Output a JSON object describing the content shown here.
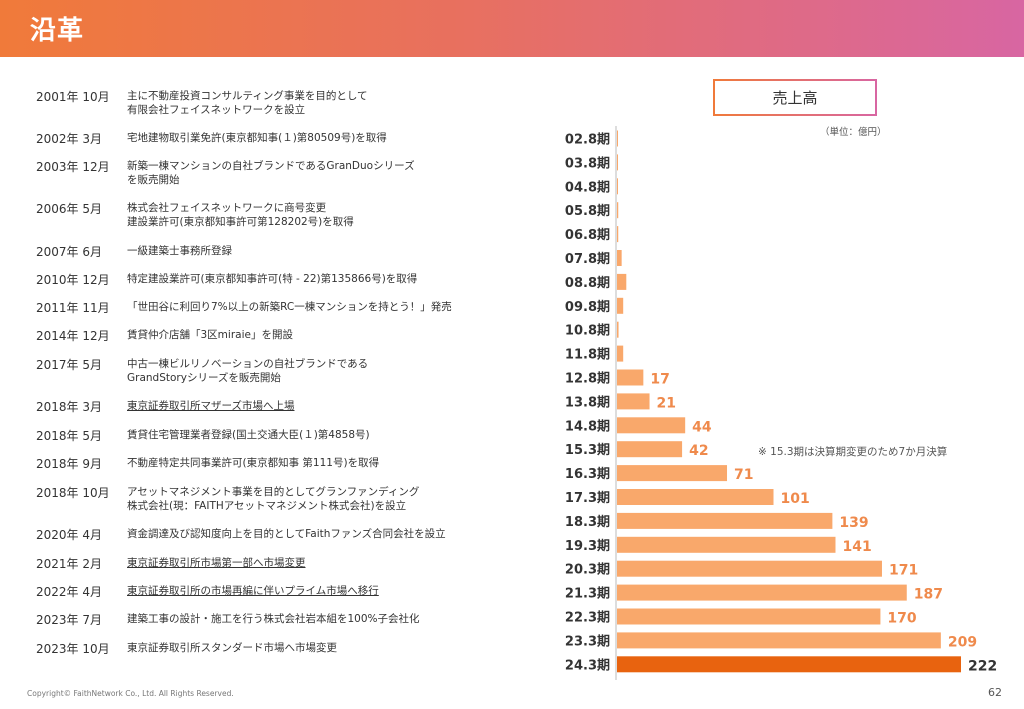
{
  "header": {
    "title": "沿革"
  },
  "timeline": [
    {
      "date": "2001年 10月",
      "lines": [
        "主に不動産投資コンサルティング事業を目的として",
        "有限会社フェイスネットワークを設立"
      ],
      "underline": false
    },
    {
      "date": "2002年  3月",
      "lines": [
        "宅地建物取引業免許(東京都知事(１)第80509号)を取得"
      ],
      "underline": false
    },
    {
      "date": "2003年 12月",
      "lines": [
        "新築一棟マンションの自社ブランドであるGranDuoシリーズ",
        "を販売開始"
      ],
      "underline": false
    },
    {
      "date": "2006年  5月",
      "lines": [
        "株式会社フェイスネットワークに商号変更",
        "建設業許可(東京都知事許可第128202号)を取得"
      ],
      "underline": false
    },
    {
      "date": "2007年  6月",
      "lines": [
        "一級建築士事務所登録"
      ],
      "underline": false
    },
    {
      "date": "2010年 12月",
      "lines": [
        "特定建設業許可(東京都知事許可(特 - 22)第135866号)を取得"
      ],
      "underline": false
    },
    {
      "date": "2011年 11月",
      "lines": [
        "「世田谷に利回り7%以上の新築RC一棟マンションを持とう！」発売"
      ],
      "underline": false
    },
    {
      "date": "2014年 12月",
      "lines": [
        "賃貸仲介店舗「3区miraie」を開設"
      ],
      "underline": false
    },
    {
      "date": "2017年  5月",
      "lines": [
        "中古一棟ビルリノベーションの自社ブランドである",
        "GrandStoryシリーズを販売開始"
      ],
      "underline": false
    },
    {
      "date": "2018年  3月",
      "lines": [
        "東京証券取引所マザーズ市場へ上場"
      ],
      "underline": true
    },
    {
      "date": "2018年  5月",
      "lines": [
        "賃貸住宅管理業者登録(国土交通大臣(１)第4858号)"
      ],
      "underline": false
    },
    {
      "date": "2018年  9月",
      "lines": [
        "不動産特定共同事業許可(東京都知事 第111号)を取得"
      ],
      "underline": false
    },
    {
      "date": "2018年 10月",
      "lines": [
        "アセットマネジメント事業を目的としてグランファンディング",
        "株式会社(現：FAITHアセットマネジメント株式会社)を設立"
      ],
      "underline": false
    },
    {
      "date": "2020年  4月",
      "lines": [
        "資金調達及び認知度向上を目的としてFaithファンズ合同会社を設立"
      ],
      "underline": false
    },
    {
      "date": "2021年  2月",
      "lines": [
        "東京証券取引所市場第一部へ市場変更"
      ],
      "underline": true
    },
    {
      "date": "2022年  4月",
      "lines": [
        "東京証券取引所の市場再編に伴いプライム市場へ移行"
      ],
      "underline": true
    },
    {
      "date": "2023年  7月",
      "lines": [
        "建築工事の設計・施工を行う株式会社岩本組を100%子会社化"
      ],
      "underline": false
    },
    {
      "date": "2023年  10月",
      "lines": [
        "東京証券取引所スタンダード市場へ市場変更"
      ],
      "underline": false
    }
  ],
  "chart_data": {
    "type": "bar",
    "orientation": "horizontal",
    "title": "売上高",
    "unit_label": "（単位：億円）",
    "categories": [
      "02.8期",
      "03.8期",
      "04.8期",
      "05.8期",
      "06.8期",
      "07.8期",
      "08.8期",
      "09.8期",
      "10.8期",
      "11.8期",
      "12.8期",
      "13.8期",
      "14.8期",
      "15.3期",
      "16.3期",
      "17.3期",
      "18.3期",
      "19.3期",
      "20.3期",
      "21.3期",
      "22.3期",
      "23.3期",
      "24.3期"
    ],
    "values": [
      0.3,
      0.5,
      0.5,
      0.8,
      0.8,
      3,
      6,
      4,
      1,
      4,
      17,
      21,
      44,
      42,
      71,
      101,
      139,
      141,
      171,
      187,
      170,
      209,
      222
    ],
    "data_labels": [
      "",
      "",
      "",
      "",
      "",
      "",
      "",
      "",
      "",
      "",
      "17",
      "21",
      "44",
      "42",
      "71",
      "101",
      "139",
      "141",
      "171",
      "187",
      "170",
      "209",
      "222"
    ],
    "xlim": [
      0,
      222
    ],
    "grid": false,
    "colors": {
      "bar": "#f9a86b",
      "highlight_bar": "#e8630f",
      "label": "#ef8a4c",
      "highlight_label": "#333333"
    },
    "highlight_index": 22,
    "annotation": "※ 15.3期は決算期変更のため7か月決算"
  },
  "footer": {
    "copyright": "Copyright© FaithNetwork Co., Ltd. All Rights Reserved.",
    "page_number": "62"
  }
}
